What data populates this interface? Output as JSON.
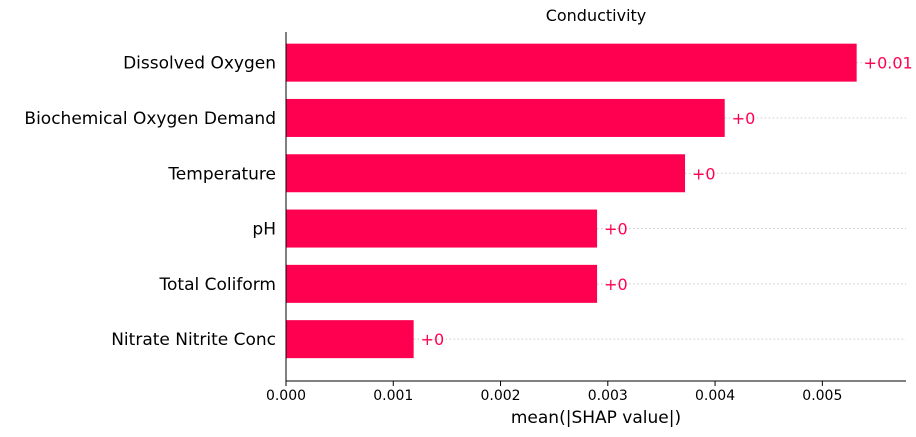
{
  "chart_data": {
    "type": "bar",
    "orientation": "horizontal",
    "title": "Conductivity",
    "xlabel": "mean(|SHAP value|)",
    "ylabel": "",
    "categories": [
      "Dissolved Oxygen",
      "Biochemical Oxygen Demand",
      "Temperature",
      "pH",
      "Total Coliform",
      "Nitrate Nitrite Conc"
    ],
    "values": [
      0.00532,
      0.00409,
      0.00372,
      0.0029,
      0.0029,
      0.00119
    ],
    "value_labels": [
      "+0.01",
      "+0",
      "+0",
      "+0",
      "+0",
      "+0"
    ],
    "xticks": [
      "0.000",
      "0.001",
      "0.002",
      "0.003",
      "0.004",
      "0.005"
    ],
    "xlim": [
      0,
      0.00578
    ],
    "grid": "dotted horizontal guide lines per bar",
    "bar_color": "#ff0051",
    "label_color": "#ff0051"
  }
}
